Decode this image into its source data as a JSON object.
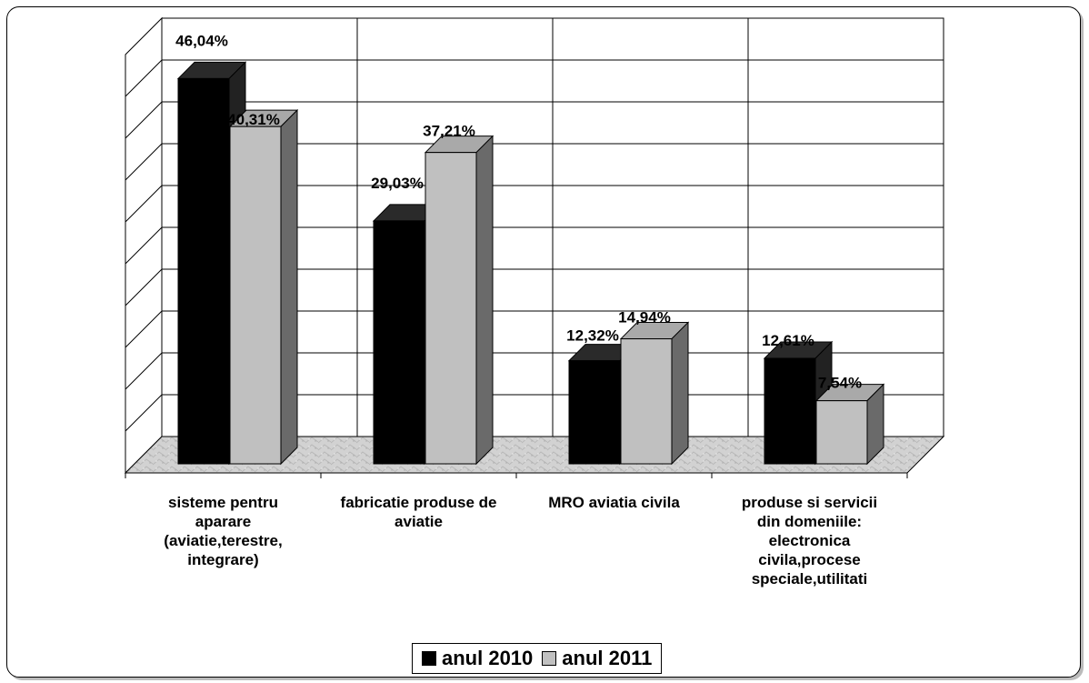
{
  "chart_data": {
    "type": "bar",
    "categories": [
      "sisteme pentru aparare (aviatie,terestre, integrare)",
      "fabricatie produse de aviatie",
      "MRO aviatia civila",
      "produse si servicii din domeniile: electronica civila,procese speciale,utilitati"
    ],
    "series": [
      {
        "name": "anul 2010",
        "values": [
          46.04,
          29.03,
          12.32,
          12.61
        ],
        "labels": [
          "46,04%",
          "29,03%",
          "12,32%",
          "12,61%"
        ],
        "color": "#000000"
      },
      {
        "name": "anul 2011",
        "values": [
          40.31,
          37.21,
          14.94,
          7.54
        ],
        "labels": [
          "40,31%",
          "37,21%",
          "14,94%",
          "7,54%"
        ],
        "color": "#c0c0c0"
      }
    ],
    "ylim": [
      0,
      50
    ],
    "grid": true,
    "three_d": true,
    "legend_position": "bottom",
    "title": "",
    "xlabel": "",
    "ylabel": ""
  },
  "category_display_lines": [
    "sisteme pentru\naparare\n(aviatie,terestre,\nintegrare)",
    "fabricatie produse de\naviatie",
    "MRO aviatia civila",
    "produse si servicii\ndin domeniile:\nelectronica\ncivila,procese\nspeciale,utilitati"
  ],
  "legend": {
    "items": [
      "anul 2010",
      "anul 2011"
    ]
  }
}
